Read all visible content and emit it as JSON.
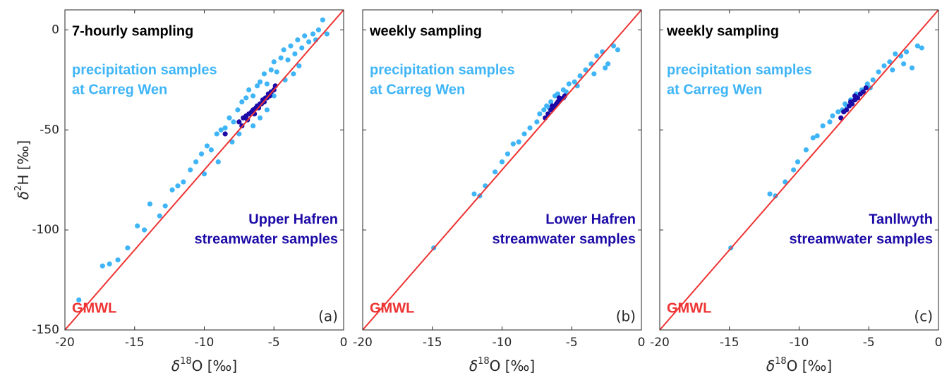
{
  "chart_data": [
    {
      "type": "scatter",
      "title": "7-hourly sampling",
      "panel_label": "(a)",
      "xlabel": {
        "symbol": "δ",
        "sup": "18",
        "rest": "O [‰]"
      },
      "ylabel": {
        "symbol": "δ",
        "sup": "2",
        "rest": "H [‰]"
      },
      "xlim": [
        -20,
        0
      ],
      "ylim": [
        -150,
        10
      ],
      "xticks": [
        -20,
        -15,
        -10,
        -5,
        0
      ],
      "yticks": [
        -150,
        -100,
        -50,
        0
      ],
      "show_ytick_labels": true,
      "series": [
        {
          "label": [
            "precipitation samples",
            "at Carreg Wen"
          ],
          "color": "#3fb5f7",
          "label_pos": "upper-left",
          "x": [
            -19,
            -17.3,
            -16.8,
            -16.2,
            -15.5,
            -14.8,
            -14.3,
            -13.9,
            -13.2,
            -12.8,
            -12.3,
            -11.9,
            -11.5,
            -11.0,
            -10.6,
            -10.2,
            -9.8,
            -9.5,
            -9.1,
            -8.8,
            -8.5,
            -8.2,
            -7.9,
            -7.6,
            -7.3,
            -7.0,
            -6.8,
            -6.5,
            -6.2,
            -6.0,
            -5.7,
            -5.5,
            -5.2,
            -5.0,
            -4.8,
            -4.5,
            -4.3,
            -4.0,
            -3.8,
            -3.5,
            -3.3,
            -3.0,
            -2.8,
            -2.5,
            -2.2,
            -2.0,
            -1.8,
            -1.5,
            -1.2,
            -7.5,
            -6.0,
            -5.0,
            -4.2,
            -3.2,
            -8.0,
            -9.0,
            -10.0,
            -6.5,
            -5.5,
            -3.6
          ],
          "values": [
            -135,
            -118,
            -117,
            -115,
            -109,
            -98,
            -100,
            -87,
            -93,
            -88,
            -80,
            -78,
            -76,
            -70,
            -66,
            -62,
            -58,
            -60,
            -52,
            -50,
            -49,
            -44,
            -46,
            -40,
            -36,
            -34,
            -30,
            -33,
            -28,
            -26,
            -22,
            -27,
            -20,
            -16,
            -21,
            -14,
            -10,
            -15,
            -8,
            -12,
            -5,
            -9,
            -3,
            -6,
            -2,
            -5,
            0,
            5,
            -2,
            -52,
            -44,
            -33,
            -25,
            -18,
            -56,
            -66,
            -72,
            -48,
            -40,
            -22
          ]
        },
        {
          "label": [
            "Upper Hafren",
            "streamwater samples"
          ],
          "color": "#1b0aa6",
          "label_pos": "lower-right",
          "x": [
            -8.5,
            -7.5,
            -7.2,
            -7.0,
            -6.8,
            -6.6,
            -6.5,
            -6.3,
            -6.2,
            -6.0,
            -5.9,
            -5.8,
            -5.6,
            -5.5,
            -5.3,
            -5.2,
            -5.0,
            -4.9,
            -6.4,
            -6.1,
            -5.7,
            -7.3,
            -6.9,
            -5.4
          ],
          "values": [
            -52,
            -46,
            -44,
            -43,
            -42,
            -41,
            -40,
            -39,
            -38,
            -37,
            -37,
            -35,
            -34,
            -34,
            -33,
            -31,
            -30,
            -28,
            -42,
            -39,
            -36,
            -48,
            -45,
            -32
          ]
        },
        {
          "label": [
            "GMWL"
          ],
          "color": "#ee3333",
          "label_pos": "lower-left",
          "kind": "line",
          "x": [
            -20,
            0
          ],
          "values": [
            -150,
            10
          ]
        }
      ]
    },
    {
      "type": "scatter",
      "title": "weekly sampling",
      "panel_label": "(b)",
      "xlabel": {
        "symbol": "δ",
        "sup": "18",
        "rest": "O [‰]"
      },
      "xlim": [
        -20,
        0
      ],
      "ylim": [
        -150,
        10
      ],
      "xticks": [
        -20,
        -15,
        -10,
        -5,
        0
      ],
      "yticks": [
        -150,
        -100,
        -50,
        0
      ],
      "show_ytick_labels": false,
      "series": [
        {
          "label": [
            "precipitation samples",
            "at Carreg Wen"
          ],
          "color": "#3fb5f7",
          "label_pos": "upper-left",
          "x": [
            -14.9,
            -12,
            -11.6,
            -11.2,
            -10.5,
            -10,
            -9.6,
            -9.2,
            -8.8,
            -8.4,
            -8,
            -7.5,
            -7.3,
            -7,
            -6.8,
            -6.5,
            -6.2,
            -6,
            -5.6,
            -5.2,
            -4.8,
            -4.4,
            -4,
            -3.6,
            -3.2,
            -2.8,
            -2.4,
            -2,
            -1.7,
            -6.6,
            -5.4,
            -4.6,
            -3.4,
            -2.6
          ],
          "values": [
            -109,
            -82,
            -83,
            -78,
            -71,
            -66,
            -62,
            -57,
            -56,
            -52,
            -49,
            -46,
            -42,
            -40,
            -38,
            -36,
            -33,
            -32,
            -30,
            -27,
            -26,
            -23,
            -20,
            -17,
            -13,
            -11,
            -17,
            -8,
            -10,
            -39,
            -31,
            -28,
            -22,
            -19
          ]
        },
        {
          "label": [
            "Lower Hafren",
            "streamwater samples"
          ],
          "color": "#1b0aa6",
          "label_pos": "lower-right",
          "x": [
            -6.9,
            -6.7,
            -6.5,
            -6.3,
            -6.1,
            -6.0,
            -5.8,
            -5.6,
            -5.5,
            -6.4,
            -6.2,
            -5.9
          ],
          "values": [
            -44,
            -42,
            -40,
            -39,
            -37,
            -36,
            -35,
            -34,
            -33,
            -38,
            -38,
            -34
          ]
        },
        {
          "label": [
            "GMWL"
          ],
          "color": "#ee3333",
          "label_pos": "lower-left",
          "kind": "line",
          "x": [
            -20,
            0
          ],
          "values": [
            -150,
            10
          ]
        }
      ]
    },
    {
      "type": "scatter",
      "title": "weekly sampling",
      "panel_label": "(c)",
      "xlabel": {
        "symbol": "δ",
        "sup": "18",
        "rest": "O [‰]"
      },
      "xlim": [
        -20,
        0
      ],
      "ylim": [
        -150,
        10
      ],
      "xticks": [
        -20,
        -15,
        -10,
        -5,
        0
      ],
      "yticks": [
        -150,
        -100,
        -50,
        0
      ],
      "show_ytick_labels": false,
      "series": [
        {
          "label": [
            "precipitation samples",
            "at Carreg Wen"
          ],
          "color": "#3fb5f7",
          "label_pos": "upper-left",
          "x": [
            -14.9,
            -12.1,
            -11.7,
            -11.0,
            -10.4,
            -10.1,
            -9.5,
            -9.0,
            -8.7,
            -8.3,
            -7.8,
            -7.6,
            -7.2,
            -6.9,
            -6.6,
            -6.3,
            -5.9,
            -5.5,
            -5.1,
            -4.7,
            -4.3,
            -3.9,
            -3.5,
            -3.1,
            -2.7,
            -2.3,
            -1.9,
            -1.5,
            -1.2,
            -6.7,
            -4.9,
            -3.3,
            -2.5
          ],
          "values": [
            -109,
            -82,
            -83,
            -76,
            -70,
            -66,
            -60,
            -54,
            -53,
            -48,
            -46,
            -43,
            -41,
            -40,
            -38,
            -35,
            -32,
            -30,
            -27,
            -25,
            -21,
            -18,
            -16,
            -12,
            -13,
            -11,
            -19,
            -8,
            -9,
            -37,
            -29,
            -20,
            -17
          ]
        },
        {
          "label": [
            "Tanllwyth",
            "streamwater samples"
          ],
          "color": "#1b0aa6",
          "label_pos": "lower-right",
          "x": [
            -7,
            -6.8,
            -6.6,
            -6.4,
            -6.2,
            -6.0,
            -5.8,
            -5.6,
            -5.4,
            -5.2,
            -6.3,
            -6.0
          ],
          "values": [
            -44,
            -41,
            -40,
            -38,
            -37,
            -35,
            -34,
            -32,
            -31,
            -29,
            -36,
            -33
          ]
        },
        {
          "label": [
            "GMWL"
          ],
          "color": "#ee3333",
          "label_pos": "lower-left",
          "kind": "line",
          "x": [
            -20,
            0
          ],
          "values": [
            -150,
            10
          ]
        }
      ]
    }
  ]
}
